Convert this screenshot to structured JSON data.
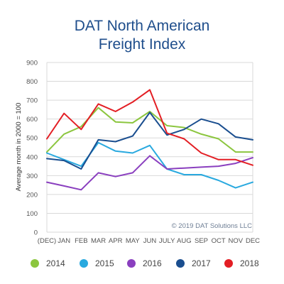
{
  "header": {
    "title_line1": "DAT North American",
    "title_line2": "Freight Index"
  },
  "chart_data": {
    "type": "line",
    "title": "DAT North American Freight Index",
    "ylabel": "Average month in 2000 = 100",
    "xlabel": "",
    "ylim": [
      0,
      900
    ],
    "yticks": [
      0,
      100,
      200,
      300,
      400,
      500,
      600,
      700,
      800,
      900
    ],
    "grid": true,
    "legend_position": "bottom",
    "categories": [
      "(DEC)",
      "JAN",
      "FEB",
      "MAR",
      "APR",
      "MAY",
      "JUN",
      "JULY",
      "AUG",
      "SEP",
      "OCT",
      "NOV",
      "DEC"
    ],
    "annotation": "© 2019 DAT Solutions LLC",
    "series": [
      {
        "name": "2014",
        "color": "#8cc63f",
        "values": [
          425,
          520,
          560,
          660,
          585,
          580,
          640,
          565,
          555,
          520,
          495,
          425,
          425
        ]
      },
      {
        "name": "2015",
        "color": "#29a9df",
        "values": [
          420,
          385,
          350,
          475,
          430,
          420,
          460,
          335,
          305,
          305,
          275,
          235,
          265
        ]
      },
      {
        "name": "2016",
        "color": "#8a3fbf",
        "values": [
          265,
          245,
          225,
          315,
          295,
          315,
          405,
          335,
          340,
          345,
          350,
          365,
          395
        ]
      },
      {
        "name": "2017",
        "color": "#1a4e8f",
        "values": [
          390,
          380,
          335,
          490,
          480,
          510,
          635,
          515,
          545,
          600,
          575,
          505,
          490
        ]
      },
      {
        "name": "2018",
        "color": "#e31e24",
        "values": [
          495,
          630,
          545,
          680,
          640,
          690,
          755,
          525,
          495,
          420,
          385,
          385,
          355
        ]
      }
    ]
  }
}
